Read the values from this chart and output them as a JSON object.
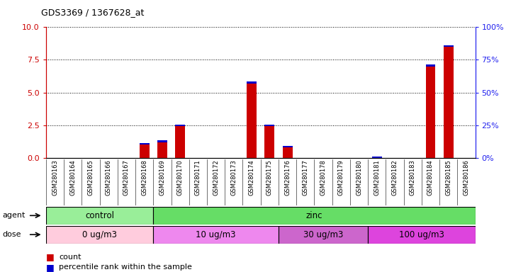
{
  "title": "GDS3369 / 1367628_at",
  "samples": [
    "GSM280163",
    "GSM280164",
    "GSM280165",
    "GSM280166",
    "GSM280167",
    "GSM280168",
    "GSM280169",
    "GSM280170",
    "GSM280171",
    "GSM280172",
    "GSM280173",
    "GSM280174",
    "GSM280175",
    "GSM280176",
    "GSM280177",
    "GSM280178",
    "GSM280179",
    "GSM280180",
    "GSM280181",
    "GSM280182",
    "GSM280183",
    "GSM280184",
    "GSM280185",
    "GSM280186"
  ],
  "count_values": [
    0,
    0,
    0,
    0,
    0,
    1.0,
    1.2,
    2.4,
    0,
    0,
    0,
    5.7,
    2.4,
    0.8,
    0,
    0,
    0,
    0,
    0,
    0,
    0,
    7.0,
    8.5,
    0
  ],
  "percentile_values": [
    0,
    0,
    0,
    0,
    0,
    0.12,
    0.12,
    0.12,
    0,
    0,
    0,
    0.12,
    0.12,
    0.12,
    0,
    0,
    0,
    0,
    0.12,
    0,
    0,
    0.12,
    0.12,
    0
  ],
  "ylim_left": [
    0,
    10
  ],
  "ylim_right": [
    0,
    100
  ],
  "yticks_left": [
    0,
    2.5,
    5.0,
    7.5,
    10
  ],
  "yticks_right": [
    0,
    25,
    50,
    75,
    100
  ],
  "agent_groups": [
    {
      "label": "control",
      "start": 0,
      "end": 6,
      "color": "#99EE99"
    },
    {
      "label": "zinc",
      "start": 6,
      "end": 24,
      "color": "#66DD66"
    }
  ],
  "dose_groups": [
    {
      "label": "0 ug/m3",
      "start": 0,
      "end": 6,
      "color": "#FFCCDD"
    },
    {
      "label": "10 ug/m3",
      "start": 6,
      "end": 13,
      "color": "#EE88EE"
    },
    {
      "label": "30 ug/m3",
      "start": 13,
      "end": 18,
      "color": "#CC66CC"
    },
    {
      "label": "100 ug/m3",
      "start": 18,
      "end": 24,
      "color": "#DD44DD"
    }
  ],
  "count_color": "#CC0000",
  "percentile_color": "#0000CC",
  "bar_width": 0.55,
  "left_axis_color": "#CC0000",
  "right_axis_color": "#2222EE",
  "plot_bg": "#FFFFFF",
  "tick_bg": "#CCCCCC"
}
